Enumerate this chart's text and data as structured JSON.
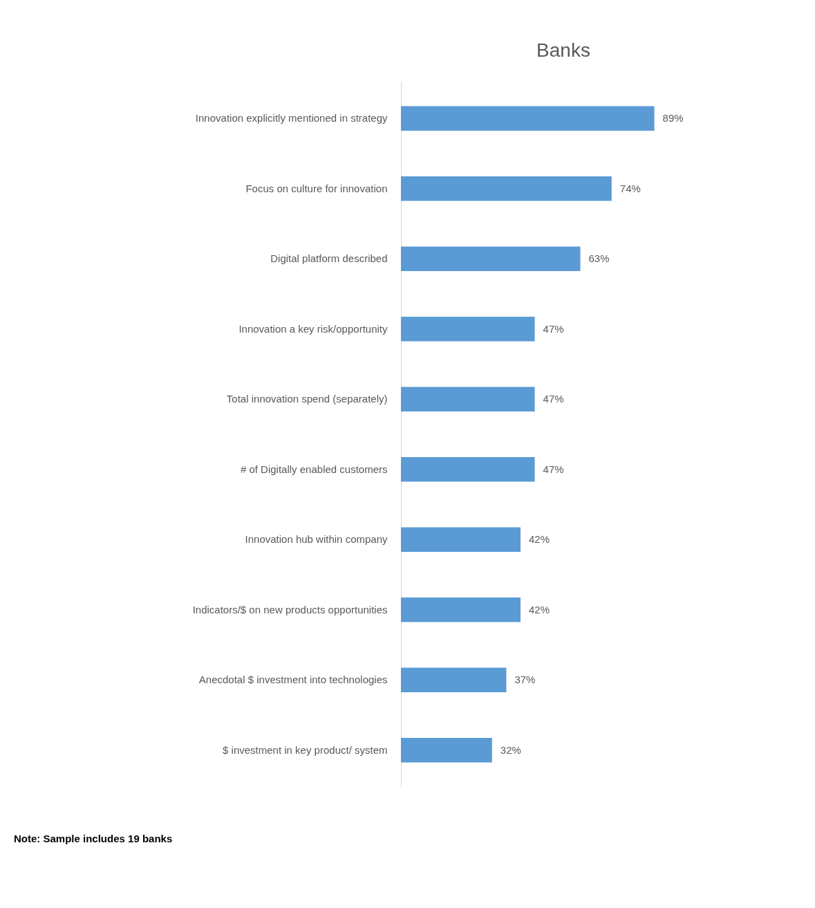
{
  "chart_data": {
    "type": "bar",
    "orientation": "horizontal",
    "title": "Banks",
    "categories": [
      "Innovation explicitly mentioned in strategy",
      "Focus on culture for innovation",
      "Digital platform described",
      "Innovation a key risk/opportunity",
      "Total innovation spend (separately)",
      "# of Digitally enabled customers",
      "Innovation hub within company",
      "Indicators/$ on new products opportunities",
      "Anecdotal $ investment into technologies",
      "$ investment in key product/ system"
    ],
    "values": [
      89,
      74,
      63,
      47,
      47,
      47,
      42,
      42,
      37,
      32
    ],
    "value_labels": [
      "89%",
      "74%",
      "63%",
      "47%",
      "47%",
      "47%",
      "42%",
      "42%",
      "37%",
      "32%"
    ],
    "color": "#5b9bd5",
    "grid": false,
    "tick_labels": "y",
    "annotations": [
      "Note: Sample includes 19 banks"
    ]
  }
}
